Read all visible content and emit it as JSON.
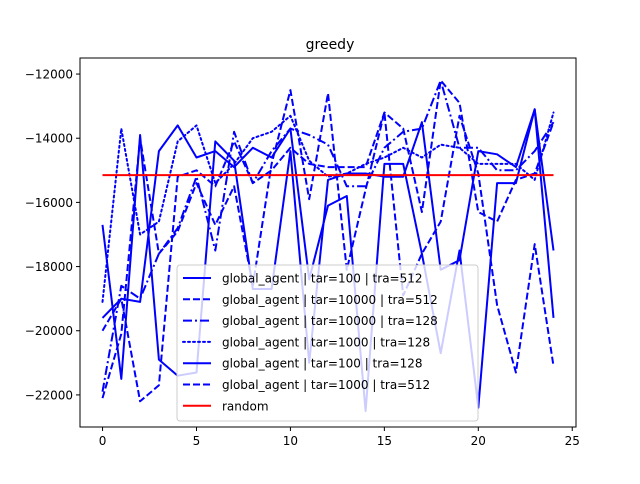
{
  "chart_data": {
    "type": "line",
    "title": "greedy",
    "xlabel": "",
    "ylabel": "",
    "xlim": [
      -1.2,
      25.2
    ],
    "ylim": [
      -23000,
      -11500
    ],
    "xticks": [
      0,
      5,
      10,
      15,
      20,
      25
    ],
    "yticks": [
      -22000,
      -20000,
      -18000,
      -16000,
      -14000,
      -12000
    ],
    "xtick_labels": [
      "0",
      "5",
      "10",
      "15",
      "20",
      "25"
    ],
    "ytick_labels": [
      "−22000",
      "−20000",
      "−18000",
      "−16000",
      "−14000",
      "−12000"
    ],
    "grid": false,
    "legend_position": "lower-center",
    "x": [
      0,
      1,
      2,
      3,
      4,
      5,
      6,
      7,
      8,
      9,
      10,
      11,
      12,
      13,
      14,
      15,
      16,
      17,
      18,
      19,
      20,
      21,
      22,
      23,
      24
    ],
    "series": [
      {
        "name": "global_agent | tar=100 | tra=512",
        "color": "#0000ff",
        "style": "solid",
        "values": [
          -16700,
          -21500,
          -13900,
          -20900,
          -21400,
          -21300,
          -14100,
          -14700,
          -18700,
          -18700,
          -14400,
          -21000,
          -15300,
          -15100,
          -15100,
          -15200,
          -15200,
          -13500,
          -18100,
          -17800,
          -14400,
          -14500,
          -14900,
          -13100,
          -17500
        ]
      },
      {
        "name": "global_agent | tar=10000 | tra=512",
        "color": "#0000ff",
        "style": "dashed",
        "values": [
          -20000,
          -19000,
          -22200,
          -21700,
          -15200,
          -15000,
          -15500,
          -14100,
          -15400,
          -15000,
          -14300,
          -14800,
          -14900,
          -14900,
          -14900,
          -13200,
          -13700,
          -16300,
          -12200,
          -12900,
          -16300,
          -16600,
          -15300,
          -15100,
          -13500
        ]
      },
      {
        "name": "global_agent | tar=10000 | tra=128",
        "color": "#0000ff",
        "style": "dashdot",
        "values": [
          -21900,
          -18600,
          -19000,
          -17600,
          -16800,
          -15200,
          -17500,
          -13800,
          -15400,
          -14400,
          -13700,
          -13900,
          -14200,
          -15500,
          -15500,
          -14300,
          -13800,
          -13700,
          -12200,
          -14300,
          -14300,
          -15000,
          -15000,
          -14400,
          -13500
        ]
      },
      {
        "name": "global_agent | tar=1000 | tra=128",
        "color": "#0000ff",
        "style": "dotted",
        "values": [
          -19100,
          -13700,
          -17000,
          -16600,
          -14100,
          -13600,
          -15400,
          -14800,
          -14000,
          -13800,
          -13300,
          -14700,
          -15200,
          -15100,
          -14800,
          -14600,
          -14300,
          -14600,
          -14200,
          -14300,
          -14800,
          -14800,
          -14800,
          -15300,
          -13200
        ]
      },
      {
        "name": "global_agent | tar=100 | tra=128",
        "color": "#0000ff",
        "style": "solid",
        "values": [
          -19600,
          -19000,
          -19100,
          -14400,
          -13600,
          -14600,
          -14400,
          -14900,
          -14300,
          -14600,
          -13700,
          -18400,
          -16100,
          -15800,
          -22500,
          -14800,
          -14800,
          -17600,
          -20700,
          -17500,
          -22400,
          -15400,
          -15400,
          -13100,
          -19600
        ]
      },
      {
        "name": "global_agent | tar=1000 | tra=512",
        "color": "#0000ff",
        "style": "dashed",
        "values": [
          -22100,
          -20100,
          -14000,
          -17600,
          -16900,
          -15400,
          -16700,
          -15500,
          -18600,
          -14800,
          -12500,
          -15900,
          -12600,
          -18100,
          -15600,
          -13200,
          -18900,
          -17600,
          -16600,
          -13300,
          -15100,
          -19200,
          -21300,
          -17300,
          -21100
        ]
      },
      {
        "name": "random",
        "color": "#ff0000",
        "style": "solid",
        "values": [
          -15150,
          -15150,
          -15150,
          -15150,
          -15150,
          -15150,
          -15150,
          -15150,
          -15150,
          -15150,
          -15150,
          -15150,
          -15150,
          -15150,
          -15150,
          -15150,
          -15150,
          -15150,
          -15150,
          -15150,
          -15150,
          -15150,
          -15150,
          -15150,
          -15150
        ]
      }
    ]
  }
}
